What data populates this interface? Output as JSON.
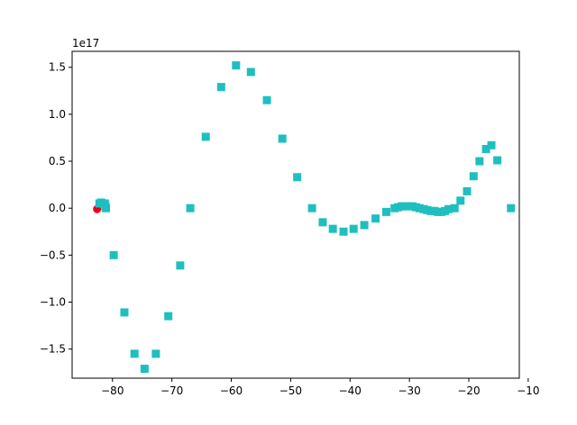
{
  "chart_data": {
    "type": "scatter",
    "title": "",
    "xlabel": "",
    "ylabel": "",
    "y_offset_label": "1e17",
    "xlim": [
      -86.8,
      -11.5
    ],
    "ylim": [
      -1.81,
      1.67
    ],
    "xticks": [
      -80,
      -70,
      -60,
      -50,
      -40,
      -30,
      -20,
      -10
    ],
    "xtick_labels": [
      "−80",
      "−70",
      "−60",
      "−50",
      "−40",
      "−30",
      "−20",
      "−10"
    ],
    "yticks": [
      -1.5,
      -1.0,
      -0.5,
      0.0,
      0.5,
      1.0,
      1.5
    ],
    "ytick_labels": [
      "−1.5",
      "−1.0",
      "−0.5",
      "0.0",
      "0.5",
      "1.0",
      "1.5"
    ],
    "grid": false,
    "series": [
      {
        "marker": "circle",
        "color": "#e8001a",
        "x": [
          -82.6
        ],
        "y": [
          -0.01
        ]
      },
      {
        "marker": "square",
        "color": "#1fbfbf",
        "x": [
          -82.2,
          -81.9,
          -81.6,
          -81.3,
          -81.2,
          -81.1,
          -79.8,
          -78.0,
          -76.3,
          -74.6,
          -72.7,
          -70.6,
          -68.6,
          -66.9,
          -64.3,
          -61.7,
          -59.2,
          -56.7,
          -54.0,
          -51.4,
          -48.9,
          -46.4,
          -44.6,
          -42.9,
          -41.1,
          -39.4,
          -37.6,
          -35.7,
          -33.9,
          -32.5,
          -31.9,
          -31.3,
          -30.7,
          -30.1,
          -29.5,
          -28.9,
          -28.3,
          -27.6,
          -27.0,
          -26.4,
          -25.8,
          -25.2,
          -24.6,
          -24.0,
          -23.4,
          -22.4,
          -21.4,
          -20.3,
          -19.2,
          -18.2,
          -17.1,
          -16.2,
          -15.2,
          -12.9
        ],
        "y": [
          0.05,
          0.06,
          0.05,
          0.05,
          0.02,
          0.0,
          -0.5,
          -1.11,
          -1.55,
          -1.71,
          -1.55,
          -1.15,
          -0.61,
          0.0,
          0.76,
          1.29,
          1.52,
          1.45,
          1.15,
          0.74,
          0.33,
          0.0,
          -0.15,
          -0.22,
          -0.25,
          -0.22,
          -0.18,
          -0.11,
          -0.04,
          0.0,
          0.01,
          0.02,
          0.02,
          0.02,
          0.02,
          0.01,
          0.0,
          -0.01,
          -0.02,
          -0.03,
          -0.03,
          -0.04,
          -0.04,
          -0.03,
          -0.01,
          0.0,
          0.08,
          0.18,
          0.34,
          0.5,
          0.63,
          0.67,
          0.51,
          0.0
        ]
      }
    ]
  }
}
